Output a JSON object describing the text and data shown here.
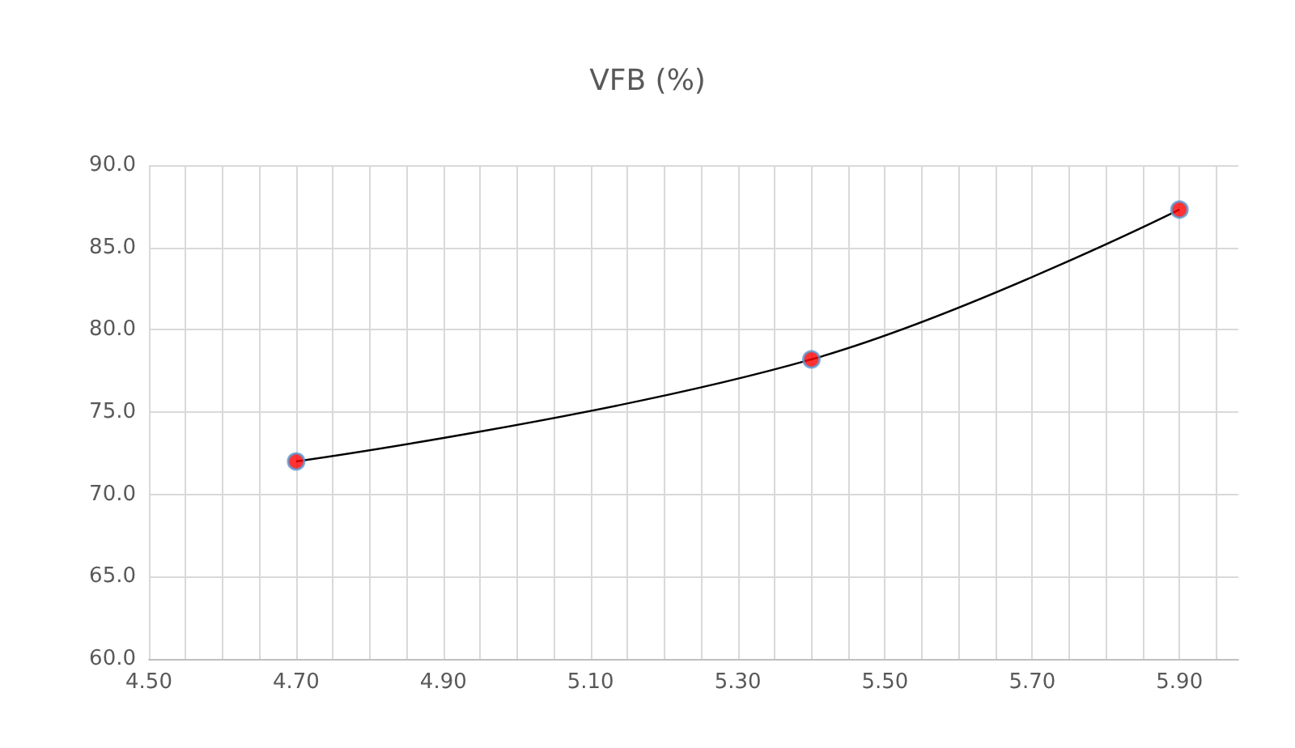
{
  "chart_data": {
    "type": "scatter",
    "title": "VFB (%)",
    "x": [
      4.7,
      5.4,
      5.9
    ],
    "series": [
      {
        "color": "#ff0000",
        "marker": "circle",
        "values": [
          72.0,
          78.2,
          87.3
        ]
      },
      {
        "type": "line",
        "color": "#000000",
        "marker": "none",
        "values": [
          72.0,
          78.2,
          87.3
        ]
      }
    ],
    "xlim": [
      4.5,
      5.98
    ],
    "xticks": [
      {
        "value": 4.5,
        "label": "4.50"
      },
      {
        "value": 4.7,
        "label": "4.70"
      },
      {
        "value": 4.9,
        "label": "4.90"
      },
      {
        "value": 5.1,
        "label": "5.10"
      },
      {
        "value": 5.3,
        "label": "5.30"
      },
      {
        "value": 5.5,
        "label": "5.50"
      },
      {
        "value": 5.7,
        "label": "5.70"
      },
      {
        "value": 5.9,
        "label": "5.90"
      }
    ],
    "ylim": [
      60,
      90
    ],
    "yticks": [
      {
        "value": 60,
        "label": "60.0"
      },
      {
        "value": 65,
        "label": "65.0"
      },
      {
        "value": 70,
        "label": "70.0"
      },
      {
        "value": 75,
        "label": "75.0"
      },
      {
        "value": 80,
        "label": "80.0"
      },
      {
        "value": 85,
        "label": "85.0"
      },
      {
        "value": 90,
        "label": "90.0"
      }
    ],
    "grid": true
  }
}
